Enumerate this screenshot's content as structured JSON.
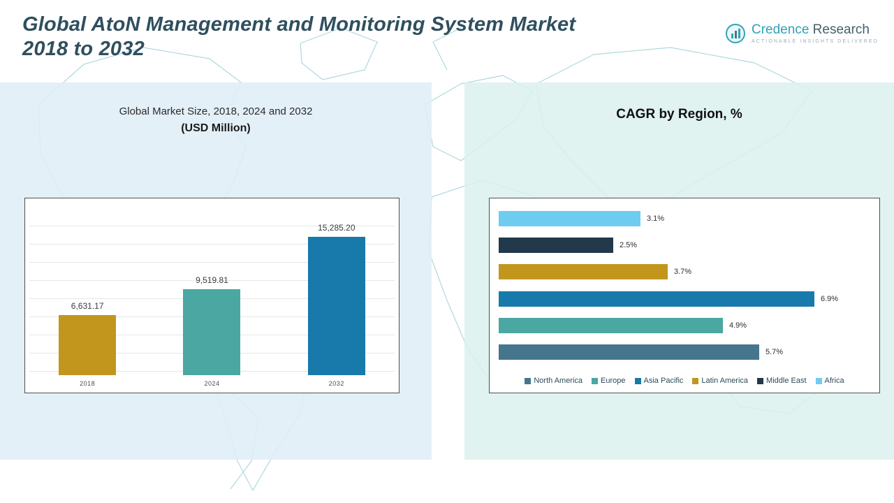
{
  "header": {
    "title_line1": "Global AtoN Management and Monitoring System Market",
    "title_line2": "2018 to 2032",
    "brand": {
      "name_part1": "Credence",
      "name_part2": "Research",
      "tagline": "Actionable Insights Delivered"
    }
  },
  "colors": {
    "title": "#2f4f5e",
    "panel_left_bg": "#e0edf7",
    "panel_right_bg": "#dbf1ee",
    "map_line": "#aed9de",
    "brand_teal": "#2ea3b7",
    "brand_dark": "#44606d"
  },
  "chart_data": [
    {
      "type": "bar",
      "title": "Global Market Size, 2018, 2024 and 2032",
      "subtitle": "(USD Million)",
      "categories": [
        "2018",
        "2024",
        "2032"
      ],
      "values": [
        6631.17,
        9519.81,
        15285.2
      ],
      "labels": [
        "6,631.17",
        "9,519.81",
        "15,285.20"
      ],
      "colors": [
        "#c2961c",
        "#4aa7a1",
        "#1879ab"
      ],
      "xlabel": "",
      "ylabel": "",
      "ylim": [
        0,
        16000
      ],
      "grid": true,
      "legend_position": "none"
    },
    {
      "type": "bar",
      "orientation": "horizontal",
      "title": "CAGR by Region, %",
      "series": [
        {
          "name": "Africa",
          "value": 3.1,
          "label": "3.1%",
          "color": "#6fccf1"
        },
        {
          "name": "Middle East",
          "value": 2.5,
          "label": "2.5%",
          "color": "#21394a"
        },
        {
          "name": "Latin America",
          "value": 3.7,
          "label": "3.7%",
          "color": "#c2961c"
        },
        {
          "name": "Asia Pacific",
          "value": 6.9,
          "label": "6.9%",
          "color": "#1879ab"
        },
        {
          "name": "Europe",
          "value": 4.9,
          "label": "4.9%",
          "color": "#4aa7a1"
        },
        {
          "name": "North America",
          "value": 5.7,
          "label": "5.7%",
          "color": "#45768e"
        }
      ],
      "legend": [
        "North America",
        "Europe",
        "Asia Pacific",
        "Latin America",
        "Middle East",
        "Africa"
      ],
      "xlim": [
        0,
        7.5
      ],
      "grid": false,
      "legend_position": "bottom"
    }
  ]
}
